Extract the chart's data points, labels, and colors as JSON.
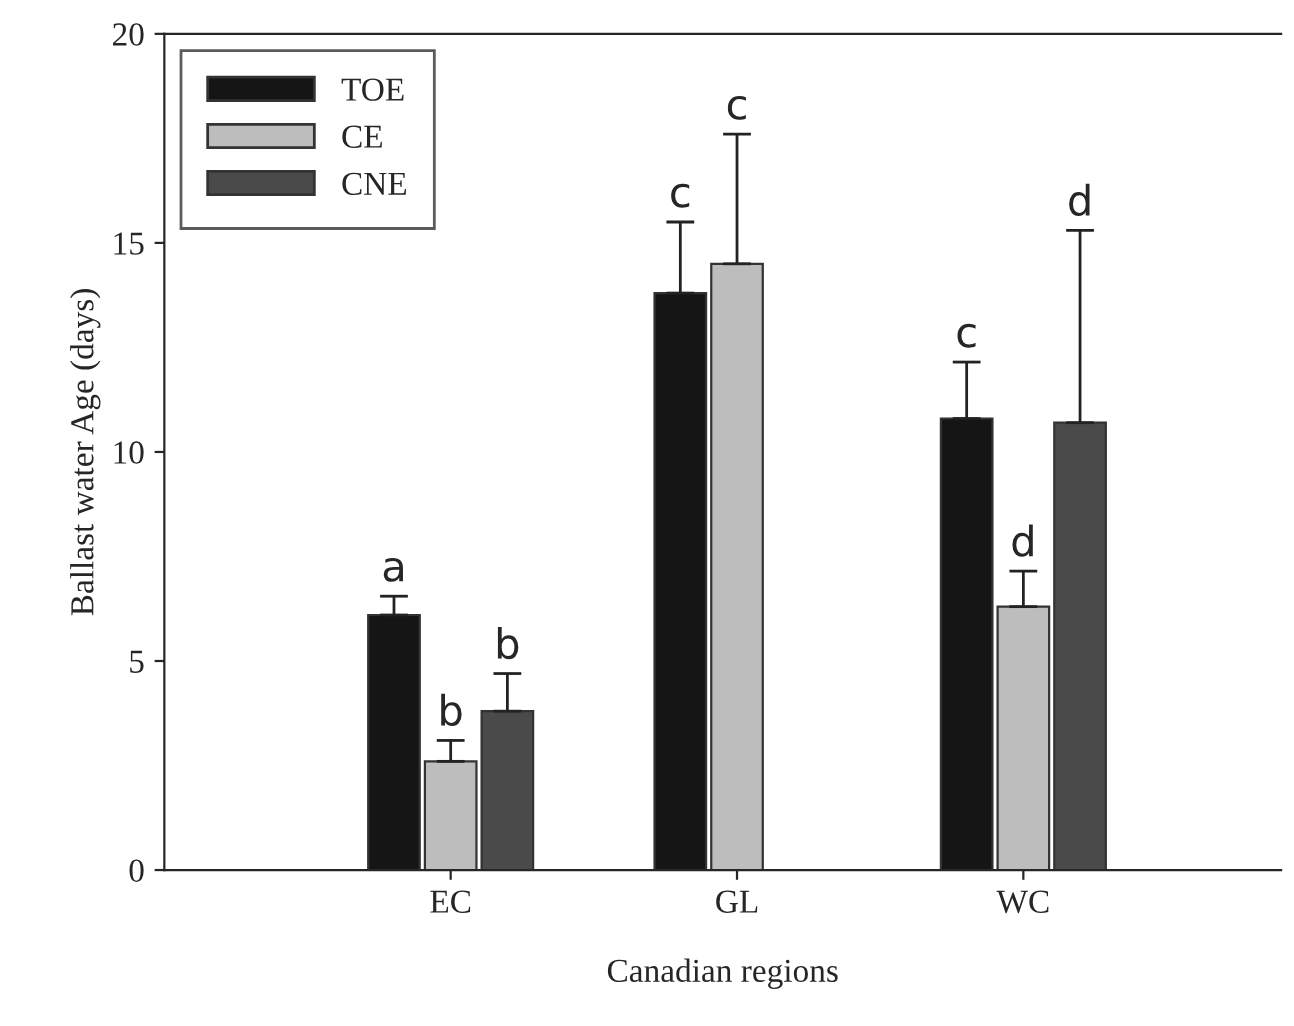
{
  "chart_data": {
    "type": "bar",
    "xlabel": "Canadian regions",
    "ylabel": "Ballast water Age (days)",
    "categories": [
      "EC",
      "GL",
      "WC"
    ],
    "series": [
      {
        "name": "TOE",
        "color": "#151515",
        "values": [
          6.1,
          13.8,
          10.8
        ],
        "errors": [
          [
            6.1,
            6.55
          ],
          [
            13.8,
            15.5
          ],
          [
            10.8,
            12.15
          ]
        ]
      },
      {
        "name": "CE",
        "color": "#bdbdbd",
        "values": [
          2.6,
          14.5,
          6.3
        ],
        "errors": [
          [
            2.6,
            3.1
          ],
          [
            14.5,
            17.6
          ],
          [
            6.3,
            7.15
          ]
        ]
      },
      {
        "name": "CNE",
        "color": "#4a4a4a",
        "values": [
          3.8,
          null,
          10.7
        ],
        "errors": [
          [
            3.8,
            4.7
          ],
          null,
          [
            10.7,
            15.3
          ]
        ]
      }
    ],
    "ylim": [
      0,
      20
    ],
    "yticks": [
      0,
      5,
      10,
      15,
      20
    ],
    "grid": false,
    "legend": "top left",
    "annotations": [
      "a",
      "b",
      "b",
      "c",
      "c",
      "c",
      "d",
      "d"
    ]
  }
}
